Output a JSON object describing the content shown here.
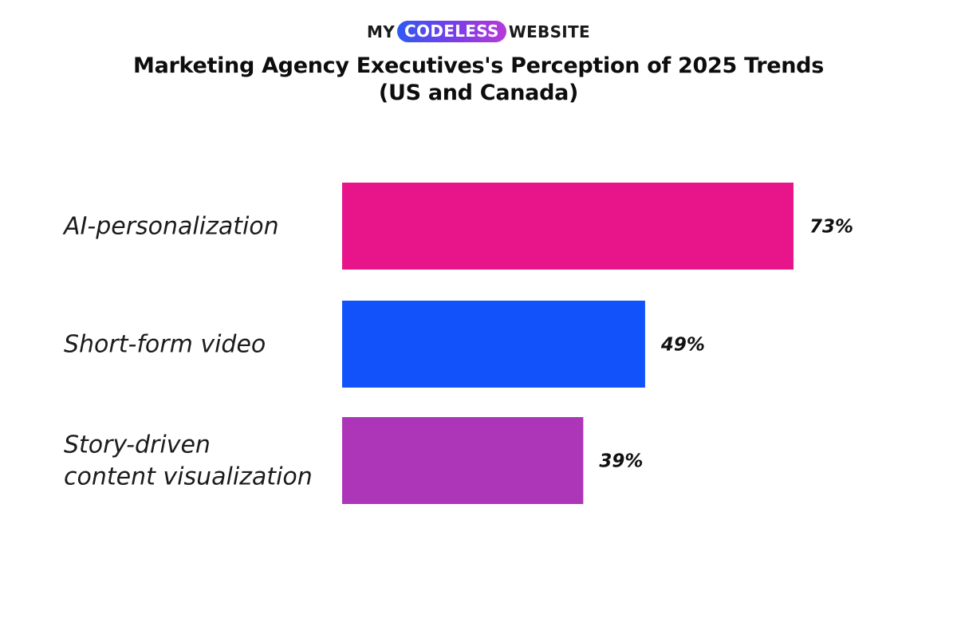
{
  "brand": {
    "prefix": "MY",
    "highlight": "CODELESS",
    "suffix": "WEBSITE"
  },
  "chart_data": {
    "type": "bar",
    "orientation": "horizontal",
    "title": "Marketing Agency Executives's Perception of 2025 Trends",
    "subtitle": "(US and Canada)",
    "categories": [
      "AI-personalization",
      "Short-form video",
      "Story-driven content visualization"
    ],
    "category_lines": [
      [
        "AI-personalization"
      ],
      [
        "Short-form video"
      ],
      [
        "Story-driven",
        "content visualization"
      ]
    ],
    "values": [
      73,
      49,
      39
    ],
    "value_labels": [
      "73%",
      "49%",
      "39%"
    ],
    "unit": "%",
    "colors": [
      "#e8158a",
      "#1252fb",
      "#ad36b8"
    ],
    "xlim": [
      0,
      73
    ],
    "grid": false,
    "legend": "none"
  }
}
